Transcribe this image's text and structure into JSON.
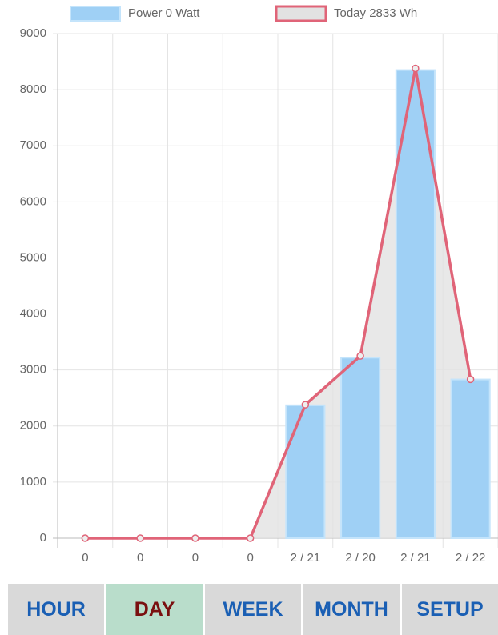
{
  "chart_data": {
    "type": "bar",
    "categories": [
      "0",
      "0",
      "0",
      "0",
      "2 / 21",
      "2 / 20",
      "2 / 21",
      "2 / 22"
    ],
    "series": [
      {
        "name": "Power 0 Watt",
        "type": "bar",
        "color": "#9fd0f5",
        "values": [
          0,
          0,
          0,
          0,
          2370,
          3220,
          8350,
          2830
        ]
      },
      {
        "name": "Today 2833 Wh",
        "type": "line",
        "color": "#e06478",
        "fill": "#e2e2e2",
        "values": [
          0,
          0,
          0,
          0,
          2380,
          3250,
          8380,
          2833
        ]
      }
    ],
    "ylim": [
      0,
      9000
    ],
    "yticks": [
      0,
      1000,
      2000,
      3000,
      4000,
      5000,
      6000,
      7000,
      8000,
      9000
    ],
    "grid": true
  },
  "nav": {
    "buttons": [
      "HOUR",
      "DAY",
      "WEEK",
      "MONTH",
      "SETUP"
    ],
    "active": 1
  }
}
